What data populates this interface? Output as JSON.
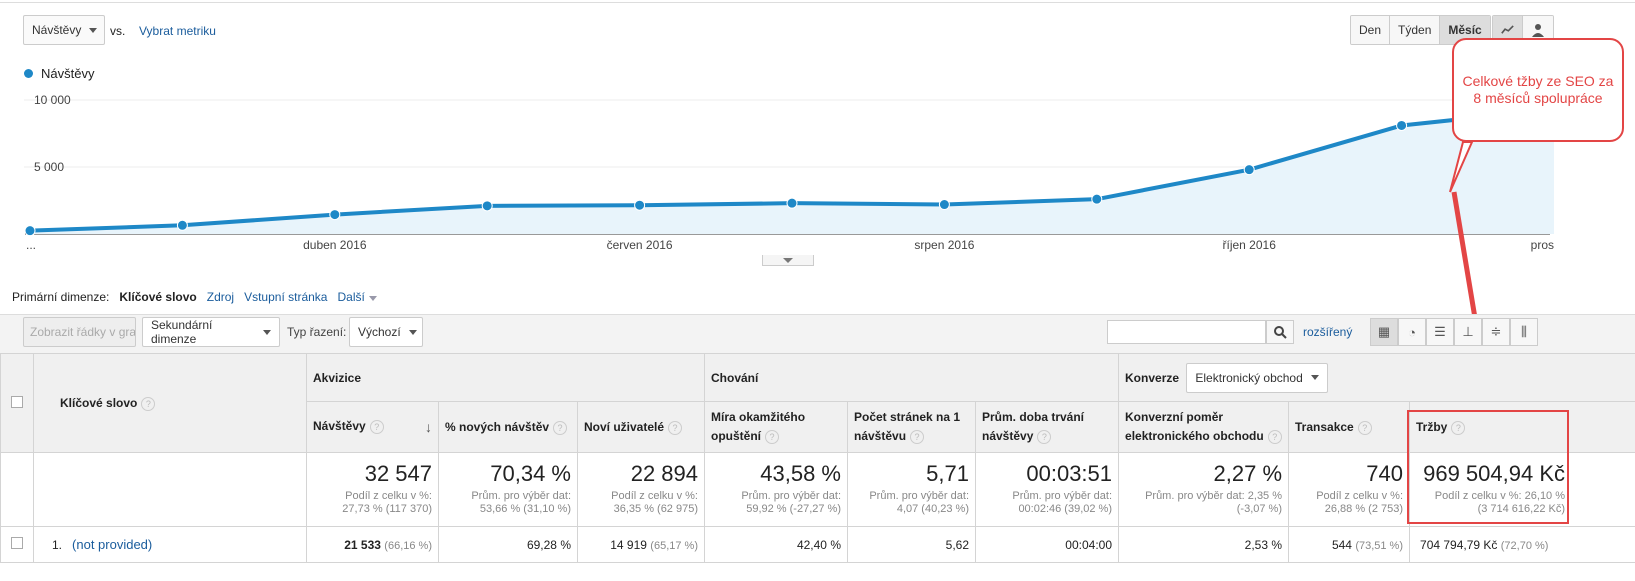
{
  "header": {
    "metric_select": "Návštěvy",
    "vs_label": "vs.",
    "choose_metric": "Vybrat metriku",
    "period_buttons": [
      "Den",
      "Týden",
      "Měsíc"
    ],
    "legend": "Návštěvy"
  },
  "chart_data": {
    "type": "area",
    "series": [
      {
        "name": "Návštěvy",
        "values": [
          250,
          650,
          1450,
          2100,
          2150,
          2300,
          2200,
          2600,
          4800,
          8100,
          9300
        ]
      }
    ],
    "y_ticks": [
      "10 000",
      "5 000"
    ],
    "x_tick_labels": [
      "...",
      "duben 2016",
      "červen 2016",
      "srpen 2016",
      "říjen 2016",
      "pros"
    ],
    "ylim": [
      0,
      10000
    ],
    "grid": true,
    "color": "#1e88c7"
  },
  "callout": "Celkové tžby ze SEO za 8 měsíců spolupráce",
  "dimensions": {
    "label": "Primární dimenze:",
    "active": "Klíčové slovo",
    "options": [
      "Zdroj",
      "Vstupní stránka",
      "Další"
    ]
  },
  "toolbar": {
    "plot_rows": "Zobrazit řádky v grafu",
    "secondary_dimension": "Sekundární dimenze",
    "sort_label": "Typ řazení:",
    "sort_value": "Výchozí",
    "search_placeholder": "",
    "advanced": "rozšířený"
  },
  "table": {
    "dim_header": "Klíčové slovo",
    "groups": {
      "acq": "Akvizice",
      "beh": "Chování",
      "conv": "Konverze",
      "conv_select": "Elektronický obchod"
    },
    "columns": [
      "Návštěvy",
      "% nových návštěv",
      "Noví uživatelé",
      "Míra okamžitého opuštění",
      "Počet stránek na 1 návštěvu",
      "Prům. doba trvání návštěvy",
      "Konverzní poměr elektronického obchodu",
      "Transakce",
      "Tržby"
    ],
    "totals": [
      {
        "big": "32 547",
        "sub1": "Podíl z celku v %:",
        "sub2": "27,73 % (117 370)"
      },
      {
        "big": "70,34 %",
        "sub1": "Prům. pro výběr dat:",
        "sub2": "53,66 % (31,10 %)"
      },
      {
        "big": "22 894",
        "sub1": "Podíl z celku v %:",
        "sub2": "36,35 % (62 975)"
      },
      {
        "big": "43,58 %",
        "sub1": "Prům. pro výběr dat:",
        "sub2": "59,92 % (-27,27 %)"
      },
      {
        "big": "5,71",
        "sub1": "Prům. pro výběr dat:",
        "sub2": "4,07 (40,23 %)"
      },
      {
        "big": "00:03:51",
        "sub1": "Prům. pro výběr dat:",
        "sub2": "00:02:46 (39,02 %)"
      },
      {
        "big": "2,27 %",
        "sub1": "Prům. pro výběr dat: 2,35 %",
        "sub2": "(-3,07 %)"
      },
      {
        "big": "740",
        "sub1": "Podíl z celku v %:",
        "sub2": "26,88 % (2 753)"
      },
      {
        "big": "969 504,94 Kč",
        "sub1": "Podíl z celku v %: 26,10 %",
        "sub2": "(3 714 616,22 Kč)"
      }
    ],
    "row1": {
      "index": "1.",
      "keyword": "(not provided)",
      "visits": "21 533",
      "visits_pct": "(66,16 %)",
      "new_pct": "69,28 %",
      "new_users": "14 919",
      "new_users_pct": "(65,17 %)",
      "bounce": "42,40 %",
      "pages": "5,62",
      "duration": "00:04:00",
      "conv": "2,53 %",
      "trans": "544",
      "trans_pct": "(73,51 %)",
      "revenue": "704 794,79 Kč",
      "revenue_pct": "(72,70 %)"
    }
  }
}
